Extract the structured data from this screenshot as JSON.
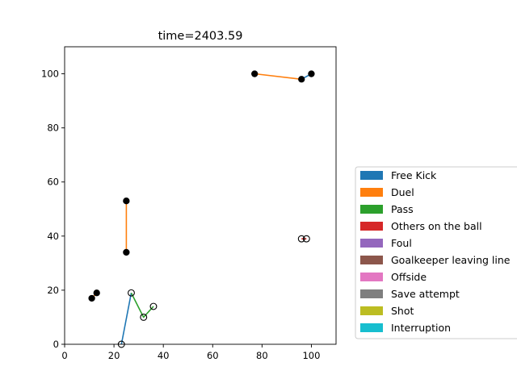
{
  "chart_data": {
    "type": "scatter",
    "title": "time=2403.59",
    "xlabel": "",
    "ylabel": "",
    "xlim": [
      0,
      110
    ],
    "ylim": [
      0,
      110
    ],
    "xticks": [
      0,
      20,
      40,
      60,
      80,
      100
    ],
    "yticks": [
      0,
      20,
      40,
      60,
      80,
      100
    ],
    "grid": false,
    "legend_position": "right",
    "legend": [
      {
        "label": "Free Kick",
        "color": "#1f77b4"
      },
      {
        "label": "Duel",
        "color": "#ff7f0e"
      },
      {
        "label": "Pass",
        "color": "#2ca02c"
      },
      {
        "label": "Others on the ball",
        "color": "#d62728"
      },
      {
        "label": "Foul",
        "color": "#9467bd"
      },
      {
        "label": "Goalkeeper leaving line",
        "color": "#8c564b"
      },
      {
        "label": "Offside",
        "color": "#e377c2"
      },
      {
        "label": "Save attempt",
        "color": "#7f7f7f"
      },
      {
        "label": "Shot",
        "color": "#bcbd22"
      },
      {
        "label": "Interruption",
        "color": "#17becf"
      }
    ],
    "segments": [
      {
        "event": "Free Kick",
        "color": "#1f77b4",
        "points": [
          [
            23,
            0
          ],
          [
            27,
            19
          ]
        ]
      },
      {
        "event": "Pass",
        "color": "#2ca02c",
        "points": [
          [
            27,
            19
          ],
          [
            32,
            10
          ],
          [
            36,
            14
          ]
        ]
      },
      {
        "event": "Duel",
        "color": "#ff7f0e",
        "points": [
          [
            11,
            17
          ],
          [
            13,
            19
          ]
        ]
      },
      {
        "event": "Duel",
        "color": "#ff7f0e",
        "points": [
          [
            25,
            34
          ],
          [
            25,
            53
          ]
        ]
      },
      {
        "event": "Duel",
        "color": "#ff7f0e",
        "points": [
          [
            77,
            100
          ],
          [
            96,
            98
          ]
        ]
      },
      {
        "event": "Free Kick",
        "color": "#1f77b4",
        "points": [
          [
            96,
            98
          ],
          [
            100,
            100
          ]
        ]
      },
      {
        "event": "Others on the ball",
        "color": "#d62728",
        "points": [
          [
            96,
            39
          ],
          [
            98,
            39
          ]
        ]
      }
    ],
    "markers": [
      {
        "x": 23,
        "y": 0,
        "filled": false
      },
      {
        "x": 27,
        "y": 19,
        "filled": false
      },
      {
        "x": 32,
        "y": 10,
        "filled": false
      },
      {
        "x": 36,
        "y": 14,
        "filled": false
      },
      {
        "x": 11,
        "y": 17,
        "filled": true
      },
      {
        "x": 13,
        "y": 19,
        "filled": true
      },
      {
        "x": 25,
        "y": 34,
        "filled": true
      },
      {
        "x": 25,
        "y": 53,
        "filled": true
      },
      {
        "x": 77,
        "y": 100,
        "filled": true
      },
      {
        "x": 96,
        "y": 98,
        "filled": true
      },
      {
        "x": 100,
        "y": 100,
        "filled": true
      },
      {
        "x": 96,
        "y": 39,
        "filled": false
      },
      {
        "x": 98,
        "y": 39,
        "filled": false
      }
    ]
  }
}
